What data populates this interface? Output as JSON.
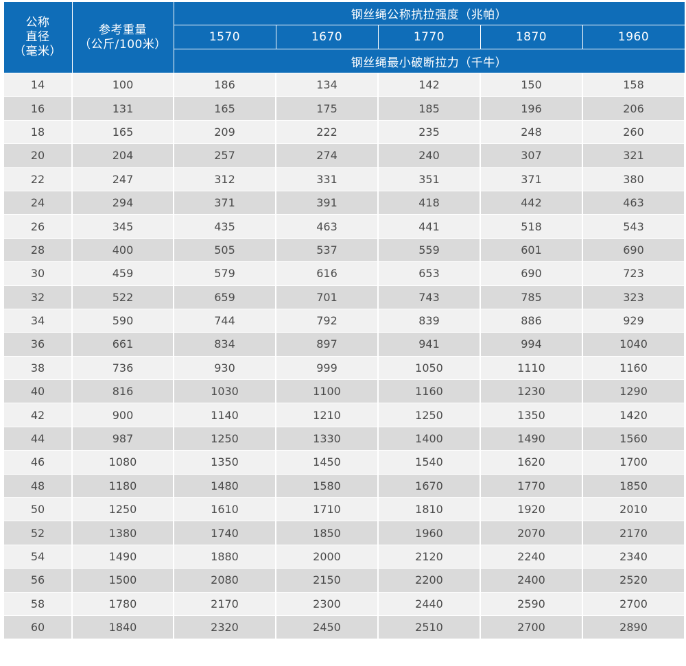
{
  "header": {
    "diameter": [
      "公称",
      "直径",
      "（毫米）"
    ],
    "weight": [
      "参考重量",
      "（公斤/100米）"
    ],
    "strength_title": "钢丝绳公称抗拉强度（兆帕）",
    "grades": [
      "1570",
      "1670",
      "1770",
      "1870",
      "1960"
    ],
    "force_title": "钢丝绳最小破断拉力（千牛）"
  },
  "rows": [
    [
      "14",
      "100",
      "186",
      "134",
      "142",
      "150",
      "158"
    ],
    [
      "16",
      "131",
      "165",
      "175",
      "185",
      "196",
      "206"
    ],
    [
      "18",
      "165",
      "209",
      "222",
      "235",
      "248",
      "260"
    ],
    [
      "20",
      "204",
      "257",
      "274",
      "240",
      "307",
      "321"
    ],
    [
      "22",
      "247",
      "312",
      "331",
      "351",
      "371",
      "380"
    ],
    [
      "24",
      "294",
      "371",
      "391",
      "418",
      "442",
      "463"
    ],
    [
      "26",
      "345",
      "435",
      "463",
      "441",
      "518",
      "543"
    ],
    [
      "28",
      "400",
      "505",
      "537",
      "559",
      "601",
      "690"
    ],
    [
      "30",
      "459",
      "579",
      "616",
      "653",
      "690",
      "723"
    ],
    [
      "32",
      "522",
      "659",
      "701",
      "743",
      "785",
      "323"
    ],
    [
      "34",
      "590",
      "744",
      "792",
      "839",
      "886",
      "929"
    ],
    [
      "36",
      "661",
      "834",
      "897",
      "941",
      "994",
      "1040"
    ],
    [
      "38",
      "736",
      "930",
      "999",
      "1050",
      "1110",
      "1160"
    ],
    [
      "40",
      "816",
      "1030",
      "1100",
      "1160",
      "1230",
      "1290"
    ],
    [
      "42",
      "900",
      "1140",
      "1210",
      "1250",
      "1350",
      "1420"
    ],
    [
      "44",
      "987",
      "1250",
      "1330",
      "1400",
      "1490",
      "1560"
    ],
    [
      "46",
      "1080",
      "1350",
      "1450",
      "1540",
      "1620",
      "1700"
    ],
    [
      "48",
      "1180",
      "1480",
      "1580",
      "1670",
      "1770",
      "1850"
    ],
    [
      "50",
      "1250",
      "1610",
      "1710",
      "1810",
      "1920",
      "2010"
    ],
    [
      "52",
      "1380",
      "1740",
      "1850",
      "1960",
      "2070",
      "2170"
    ],
    [
      "54",
      "1490",
      "1880",
      "2000",
      "2120",
      "2240",
      "2340"
    ],
    [
      "56",
      "1500",
      "2080",
      "2150",
      "2200",
      "2400",
      "2520"
    ],
    [
      "58",
      "1780",
      "2170",
      "2300",
      "2440",
      "2590",
      "2700"
    ],
    [
      "60",
      "1840",
      "2320",
      "2450",
      "2510",
      "2700",
      "2890"
    ]
  ],
  "colors": {
    "header_bg": "#0f6db8",
    "header_text": "#ffffff",
    "row_light": "#f1f1f1",
    "row_dark": "#dadada",
    "cell_text": "#4a4a4a"
  }
}
